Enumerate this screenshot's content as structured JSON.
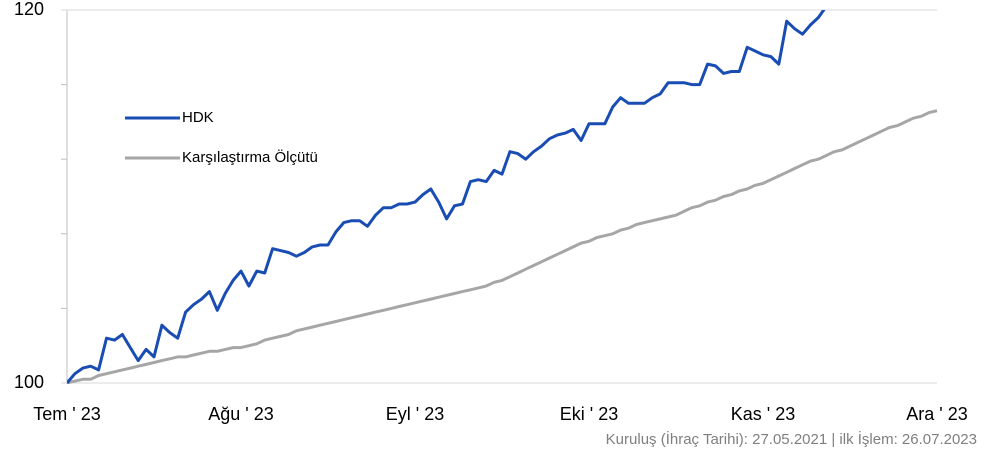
{
  "chart_data": {
    "type": "line",
    "categories": [
      "Tem ' 23",
      null,
      null,
      null,
      null,
      null,
      null,
      null,
      null,
      null,
      null,
      null,
      null,
      null,
      null,
      null,
      null,
      null,
      null,
      null,
      null,
      null,
      "Ağu ' 23",
      null,
      null,
      null,
      null,
      null,
      null,
      null,
      null,
      null,
      null,
      null,
      null,
      null,
      null,
      null,
      null,
      null,
      null,
      null,
      null,
      null,
      "Eyl ' 23",
      null,
      null,
      null,
      null,
      null,
      null,
      null,
      null,
      null,
      null,
      null,
      null,
      null,
      null,
      null,
      null,
      null,
      null,
      null,
      null,
      null,
      "Eki ' 23",
      null,
      null,
      null,
      null,
      null,
      null,
      null,
      null,
      null,
      null,
      null,
      null,
      null,
      null,
      null,
      null,
      null,
      null,
      null,
      null,
      null,
      "Kas ' 23",
      null,
      null,
      null,
      null,
      null,
      null,
      null,
      null,
      null,
      null,
      null,
      null,
      null,
      null,
      null,
      null,
      null,
      null,
      null,
      null,
      null,
      "Ara ' 23"
    ],
    "series": [
      {
        "name": "HDK",
        "color": "#1a4db3",
        "values": [
          100.0,
          100.5,
          100.8,
          100.9,
          100.7,
          102.4,
          102.3,
          102.6,
          101.9,
          101.2,
          101.8,
          101.4,
          103.1,
          102.7,
          102.4,
          103.8,
          104.2,
          104.5,
          104.9,
          103.9,
          104.8,
          105.5,
          106.0,
          105.2,
          106.0,
          105.9,
          107.2,
          107.1,
          107.0,
          106.8,
          107.0,
          107.3,
          107.4,
          107.4,
          108.1,
          108.6,
          108.7,
          108.7,
          108.4,
          109.0,
          109.4,
          109.4,
          109.6,
          109.6,
          109.7,
          110.1,
          110.4,
          109.7,
          108.8,
          109.5,
          109.6,
          110.8,
          110.9,
          110.8,
          111.4,
          111.2,
          112.4,
          112.3,
          112.0,
          112.4,
          112.7,
          113.1,
          113.3,
          113.4,
          113.6,
          113.0,
          113.9,
          113.9,
          113.9,
          114.8,
          115.3,
          115.0,
          115.0,
          115.0,
          115.3,
          115.5,
          116.1,
          116.1,
          116.1,
          116.0,
          116.0,
          117.1,
          117.0,
          116.6,
          116.7,
          116.7,
          118.0,
          117.8,
          117.6,
          117.5,
          117.1,
          119.4,
          119.0,
          118.7,
          119.2,
          119.6,
          120.2,
          null,
          null,
          null,
          null,
          null,
          null,
          null,
          null,
          null,
          null,
          null,
          null,
          null,
          null
        ]
      },
      {
        "name": "Karşılaştırma Ölçütü",
        "color": "#a6a6a6",
        "values": [
          100.0,
          100.1,
          100.2,
          100.2,
          100.4,
          100.5,
          100.6,
          100.7,
          100.8,
          100.9,
          101.0,
          101.1,
          101.2,
          101.3,
          101.4,
          101.4,
          101.5,
          101.6,
          101.7,
          101.7,
          101.8,
          101.9,
          101.9,
          102.0,
          102.1,
          102.3,
          102.4,
          102.5,
          102.6,
          102.8,
          102.9,
          103.0,
          103.1,
          103.2,
          103.3,
          103.4,
          103.5,
          103.6,
          103.7,
          103.8,
          103.9,
          104.0,
          104.1,
          104.2,
          104.3,
          104.4,
          104.5,
          104.6,
          104.7,
          104.8,
          104.9,
          105.0,
          105.1,
          105.2,
          105.4,
          105.5,
          105.7,
          105.9,
          106.1,
          106.3,
          106.5,
          106.7,
          106.9,
          107.1,
          107.3,
          107.5,
          107.6,
          107.8,
          107.9,
          108.0,
          108.2,
          108.3,
          108.5,
          108.6,
          108.7,
          108.8,
          108.9,
          109.0,
          109.2,
          109.4,
          109.5,
          109.7,
          109.8,
          110.0,
          110.1,
          110.3,
          110.4,
          110.6,
          110.7,
          110.9,
          111.1,
          111.3,
          111.5,
          111.7,
          111.9,
          112.0,
          112.2,
          112.4,
          112.5,
          112.7,
          112.9,
          113.1,
          113.3,
          113.5,
          113.7,
          113.8,
          114.0,
          114.2,
          114.3,
          114.5,
          114.6
        ]
      }
    ],
    "ylim": [
      100,
      120
    ],
    "yticks": [
      100,
      120
    ],
    "yminor_ticks": [
      104,
      108,
      112,
      116
    ],
    "legend": "left",
    "footnote": "Kuruluş (İhraç Tarihi): 27.05.2021 | ilk İşlem: 26.07.2023"
  }
}
